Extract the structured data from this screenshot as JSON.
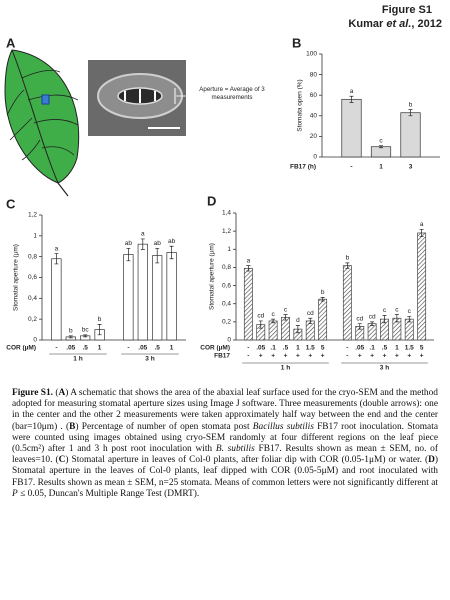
{
  "header": {
    "figure_label": "Figure S1",
    "citation": [
      "Kumar ",
      "et al.",
      ", 2012"
    ]
  },
  "panel_a": {
    "label": "A",
    "annotation": "Aperture = Average of 3 measurements"
  },
  "chart_data": [
    {
      "type": "bar",
      "panel_label": "B",
      "ylabel": "Stomata open (%)",
      "row_labels": [
        "FB17 (h)"
      ],
      "ylim": [
        0,
        100
      ],
      "yticks": [
        0,
        20,
        40,
        60,
        80,
        100
      ],
      "color": "#d9d9d9",
      "groups": [
        {
          "rows": [
            [
              "-",
              "1",
              "3"
            ]
          ],
          "values": [
            56,
            10,
            43
          ],
          "errors": [
            3,
            1,
            3
          ],
          "letters": [
            "a",
            "c",
            "b"
          ]
        }
      ]
    },
    {
      "type": "bar",
      "panel_label": "C",
      "ylabel": "Stomatal aperture (µm)",
      "row_labels": [
        "COR (µM)"
      ],
      "ylim": [
        0,
        1.2
      ],
      "yticks": [
        0,
        {
          "value": 0.2,
          "label": "0,2"
        },
        {
          "value": 0.4,
          "label": "0,4"
        },
        {
          "value": 0.6,
          "label": "0,6"
        },
        {
          "value": 0.8,
          "label": "0,8"
        },
        1,
        {
          "value": 1.2,
          "label": "1,2"
        }
      ],
      "color": "#ffffff",
      "groups": [
        {
          "label": "1 h",
          "rows": [
            [
              "-",
              ".05",
              ".5",
              "1"
            ]
          ],
          "values": [
            0.78,
            0.03,
            0.04,
            0.1
          ],
          "errors": [
            0.05,
            0.01,
            0.01,
            0.05
          ],
          "letters": [
            "a",
            "b",
            "bc",
            "b"
          ]
        },
        {
          "label": "3 h",
          "rows": [
            [
              "-",
              ".05",
              ".5",
              "1"
            ]
          ],
          "values": [
            0.82,
            0.92,
            0.81,
            0.84
          ],
          "errors": [
            0.06,
            0.05,
            0.07,
            0.06
          ],
          "letters": [
            "ab",
            "a",
            "ab",
            "ab"
          ]
        }
      ]
    },
    {
      "type": "bar",
      "panel_label": "D",
      "ylabel": "Stomatal aperture (µm)",
      "row_labels": [
        "COR (µM)",
        "FB17"
      ],
      "ylim": [
        0,
        1.4
      ],
      "hatch": true,
      "yticks": [
        0,
        {
          "value": 0.2,
          "label": "0,2"
        },
        {
          "value": 0.4,
          "label": "0,4"
        },
        {
          "value": 0.6,
          "label": "0,6"
        },
        {
          "value": 0.8,
          "label": "0,8"
        },
        1,
        {
          "value": 1.2,
          "label": "1,2"
        },
        {
          "value": 1.4,
          "label": "1,4"
        }
      ],
      "color": "#444444",
      "groups": [
        {
          "label": "1 h",
          "rows": [
            [
              "-",
              ".05",
              ".1",
              ".5",
              "1",
              "1.5",
              "5"
            ],
            [
              "-",
              "+",
              "+",
              "+",
              "+",
              "+",
              "+"
            ]
          ],
          "values": [
            0.79,
            0.17,
            0.21,
            0.25,
            0.12,
            0.21,
            0.45
          ],
          "errors": [
            0.03,
            0.04,
            0.02,
            0.03,
            0.04,
            0.03,
            0.02
          ],
          "letters": [
            "a",
            "cd",
            "c",
            "c",
            "d",
            "cd",
            "b"
          ]
        },
        {
          "label": "3 h",
          "rows": [
            [
              "-",
              ".05",
              ".1",
              ".5",
              "1",
              "1.5",
              "5"
            ],
            [
              "-",
              "+",
              "+",
              "+",
              "+",
              "+",
              "+"
            ]
          ],
          "values": [
            0.82,
            0.15,
            0.18,
            0.23,
            0.24,
            0.23,
            1.18
          ],
          "errors": [
            0.03,
            0.03,
            0.02,
            0.04,
            0.04,
            0.03,
            0.04
          ],
          "letters": [
            "b",
            "cd",
            "cd",
            "c",
            "c",
            "c",
            "a"
          ]
        }
      ]
    }
  ],
  "caption": {
    "parts": [
      "Figure S1.",
      " (",
      "A",
      ") A schematic that shows the area of the abaxial leaf surface used for the cryo-SEM and the method adopted for measuring stomatal aperture sizes using Image J software. Three measurements (double arrows): one in the center and the other 2 measurements were taken approximately half way between the end and the center (bar=10μm) . (",
      "B",
      ") Percentage of number of open stomata post ",
      "Bacillus subtilis",
      " FB17 root inoculation. Stomata were counted using images obtained using cryo-SEM randomly at four different regions on the leaf piece (0.5cm²) after 1 and 3 h post root inoculation with ",
      "B. subtilis",
      " FB17. Results shown as mean ± SEM, no. of leaves=10. (",
      "C",
      ") Stomatal aperture in leaves of Col-0 plants, after foliar dip with COR (0.05-1μM) or water. (",
      "D",
      ") Stomatal aperture in the leaves of Col-0 plants, leaf dipped with COR (0.05-5μM) and root inoculated with FB17. Results shown as mean ± SEM, n=25 stomata. Means of common letters were not significantly different at ",
      "P",
      " ≤ 0.05, Duncan's Multiple Range Test (DMRT)."
    ]
  }
}
